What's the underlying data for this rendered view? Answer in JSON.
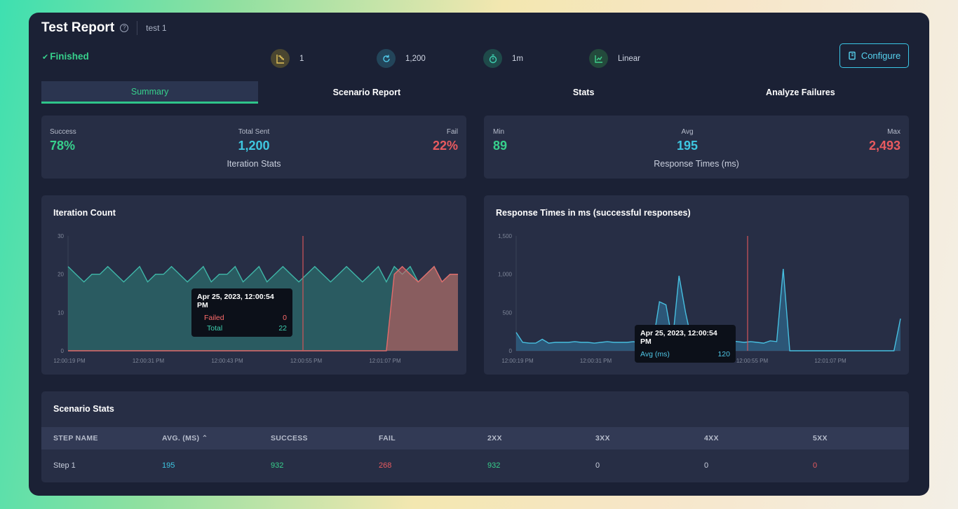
{
  "header": {
    "title": "Test Report",
    "test_name": "test 1"
  },
  "status": "Finished",
  "metrics": [
    {
      "icon": "steps-icon",
      "value": "1"
    },
    {
      "icon": "refresh-icon",
      "value": "1,200"
    },
    {
      "icon": "timer-icon",
      "value": "1m"
    },
    {
      "icon": "line-chart-icon",
      "value": "Linear"
    }
  ],
  "configure_label": "Configure",
  "tabs": [
    "Summary",
    "Scenario Report",
    "Stats",
    "Analyze Failures"
  ],
  "iteration_stats": {
    "success_label": "Success",
    "success_value": "78%",
    "total_label": "Total Sent",
    "total_value": "1,200",
    "fail_label": "Fail",
    "fail_value": "22%",
    "caption": "Iteration Stats"
  },
  "response_stats": {
    "min_label": "Min",
    "min_value": "89",
    "avg_label": "Avg",
    "avg_value": "195",
    "max_label": "Max",
    "max_value": "2,493",
    "caption": "Response Times (ms)"
  },
  "colors": {
    "success": "#37d08c",
    "total": "#3ec6e0",
    "fail": "#e85a5f",
    "accent": "#3bc6e6"
  },
  "charts": {
    "iteration_title": "Iteration Count",
    "response_title": "Response Times in ms (successful responses)"
  },
  "chart_data": [
    {
      "type": "area",
      "title": "Iteration Count",
      "ylim": [
        0,
        30
      ],
      "yticks": [
        "0",
        "10",
        "20",
        "30"
      ],
      "xticks": [
        "12:00:19 PM",
        "12:00:31 PM",
        "12:00:43 PM",
        "12:00:55 PM",
        "12:01:07 PM"
      ],
      "series": [
        {
          "name": "Total",
          "values": [
            22,
            20,
            18,
            20,
            20,
            22,
            20,
            18,
            20,
            22,
            18,
            20,
            20,
            22,
            20,
            18,
            20,
            22,
            18,
            20,
            20,
            22,
            18,
            20,
            22,
            18,
            20,
            22,
            20,
            18,
            20,
            22,
            20,
            18,
            20,
            22,
            20,
            18,
            20,
            22,
            18,
            22,
            20,
            22,
            18,
            20,
            22,
            18,
            20,
            20
          ]
        },
        {
          "name": "Failed",
          "values": [
            0,
            0,
            0,
            0,
            0,
            0,
            0,
            0,
            0,
            0,
            0,
            0,
            0,
            0,
            0,
            0,
            0,
            0,
            0,
            0,
            0,
            0,
            0,
            0,
            0,
            0,
            0,
            0,
            0,
            0,
            0,
            0,
            0,
            0,
            0,
            0,
            0,
            0,
            0,
            0,
            0,
            20,
            22,
            20,
            18,
            20,
            22,
            18,
            20,
            20
          ]
        }
      ],
      "tooltip": {
        "title": "Apr 25, 2023, 12:00:54 PM",
        "failed_label": "Failed",
        "failed_value": "0",
        "total_label": "Total",
        "total_value": "22"
      }
    },
    {
      "type": "area",
      "title": "Response Times in ms (successful responses)",
      "ylim": [
        0,
        1500
      ],
      "yticks": [
        "0",
        "500",
        "1,000",
        "1,500"
      ],
      "xticks": [
        "12:00:19 PM",
        "12:00:31 PM",
        "12:00:43 PM",
        "12:00:55 PM",
        "12:01:07 PM"
      ],
      "series": [
        {
          "name": "Avg (ms)",
          "values": [
            240,
            110,
            100,
            100,
            150,
            100,
            110,
            110,
            110,
            120,
            110,
            110,
            100,
            110,
            120,
            110,
            110,
            110,
            120,
            100,
            120,
            110,
            640,
            600,
            120,
            980,
            500,
            110,
            110,
            110,
            120,
            120,
            110,
            130,
            120,
            110,
            120,
            110,
            100,
            130,
            120,
            1070,
            0,
            0,
            0,
            0,
            0,
            0,
            0,
            0,
            0,
            0,
            0,
            0,
            0,
            0,
            0,
            0,
            0,
            420
          ]
        }
      ],
      "tooltip": {
        "title": "Apr 25, 2023, 12:00:54 PM",
        "avg_label": "Avg (ms)",
        "avg_value": "120"
      }
    }
  ],
  "scenario_stats": {
    "title": "Scenario Stats",
    "columns": [
      "STEP NAME",
      "AVG. (MS)",
      "SUCCESS",
      "FAIL",
      "2XX",
      "3XX",
      "4XX",
      "5XX"
    ],
    "rows": [
      [
        "Step 1",
        "195",
        "932",
        "268",
        "932",
        "0",
        "0",
        "0"
      ]
    ]
  }
}
